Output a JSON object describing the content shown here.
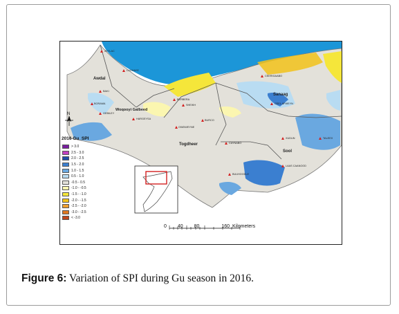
{
  "figure": {
    "caption_label": "Figure 6:",
    "caption_text": " Variation of SPI during Gu season in 2016."
  },
  "map": {
    "legend_title": "2016 Gu_SPI",
    "legend": [
      {
        "label": "> 3.0",
        "color": "#7a1fa0"
      },
      {
        "label": "2.5 - 3.0",
        "color": "#c040c0"
      },
      {
        "label": "2.0 - 2.5",
        "color": "#1f4fa8"
      },
      {
        "label": "1.5 - 2.0",
        "color": "#3b7fd0"
      },
      {
        "label": "1.0 - 1.5",
        "color": "#6aa8e0"
      },
      {
        "label": "0.5 - 1.0",
        "color": "#b9dcf2"
      },
      {
        "label": "-0.5 - 0.5",
        "color": "#e3e1da"
      },
      {
        "label": "-1.0 - -0.5",
        "color": "#fbf6b0"
      },
      {
        "label": "-1.5 - -1.0",
        "color": "#f5e63a"
      },
      {
        "label": "-2.0 - -1.5",
        "color": "#f2c21a"
      },
      {
        "label": "-2.5 - -2.0",
        "color": "#f0a030"
      },
      {
        "label": "-3.0 - -2.5",
        "color": "#e07820"
      },
      {
        "label": "< -3.0",
        "color": "#c0461a"
      }
    ],
    "regions": [
      {
        "id": "awdal",
        "name": "Awdal"
      },
      {
        "id": "woqooyi-galbeed",
        "name": "Woqooyi Galbeed"
      },
      {
        "id": "togdheer",
        "name": "Togdheer"
      },
      {
        "id": "sanaag",
        "name": "Sanaag"
      },
      {
        "id": "sool",
        "name": "Sool"
      }
    ],
    "towns": [
      {
        "id": "zeylac",
        "name": "ZEYLAC"
      },
      {
        "id": "lughaye",
        "name": "LUGHAYE"
      },
      {
        "id": "baki",
        "name": "BAKI"
      },
      {
        "id": "borama",
        "name": "BORAMA"
      },
      {
        "id": "gebiley",
        "name": "GEBILEY"
      },
      {
        "id": "hargeysa",
        "name": "HARGEYSA"
      },
      {
        "id": "berbera",
        "name": "BERBERA"
      },
      {
        "id": "sheikh",
        "name": "SHEIKH"
      },
      {
        "id": "burco",
        "name": "BURCO"
      },
      {
        "id": "owdweyne",
        "name": "OWDWEYNE"
      },
      {
        "id": "ceerigaabo",
        "name": "CEERIGAABO"
      },
      {
        "id": "ceel-afweyn",
        "name": "CEEL AFWEYN"
      },
      {
        "id": "caynabo",
        "name": "CAYNABO"
      },
      {
        "id": "xudun",
        "name": "XUDUN"
      },
      {
        "id": "taleex",
        "name": "TALEEX"
      },
      {
        "id": "laas-caanood",
        "name": "LAAS CAANOOD"
      },
      {
        "id": "buuhoodle",
        "name": "BUUHOODLE"
      }
    ],
    "north_label": "N",
    "scale": {
      "ticks": [
        "0",
        "40",
        "80",
        "160"
      ],
      "unit": "Kilometers"
    }
  }
}
